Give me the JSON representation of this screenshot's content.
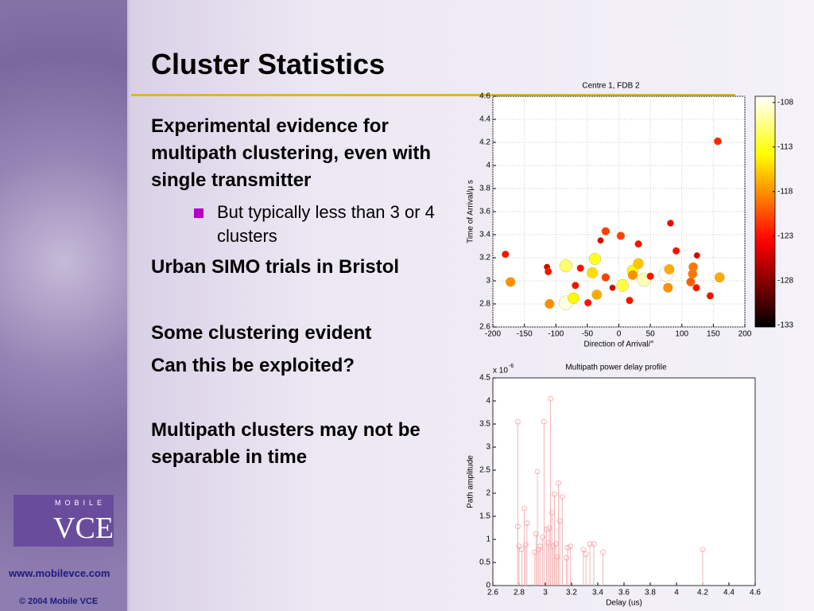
{
  "slide": {
    "title": "Cluster Statistics",
    "points": [
      "Experimental evidence for multipath clustering, even with single transmitter",
      "Urban SIMO trials in Bristol",
      "Some clustering evident",
      "Can this be exploited?",
      "Multipath clusters may not be separable in time"
    ],
    "subpoint": "But typically less than 3 or 4 clusters",
    "logo_top": "MOBILE",
    "logo_main": "VCE",
    "url": "www.mobilevce.com",
    "copyright": "© 2004 Mobile VCE"
  },
  "chart_data": [
    {
      "type": "scatter",
      "title": "Centre 1, FDB 2",
      "xlabel": "Direction of Arrival/°",
      "ylabel": "Time of Arrival/μ s",
      "colormap": "hot",
      "grid": true,
      "x": [
        -180,
        -172,
        -114,
        -112,
        -110,
        -84,
        -84,
        -72,
        -69,
        -61,
        -49,
        -38,
        -42,
        -35,
        -29,
        -21,
        -21,
        -10,
        3,
        6,
        17,
        22,
        22,
        31,
        31,
        40,
        50,
        75,
        80,
        78,
        82,
        91,
        118,
        117,
        114,
        123,
        124,
        145,
        160,
        157
      ],
      "values": [
        3.23,
        2.99,
        3.12,
        3.08,
        2.8,
        3.13,
        2.81,
        2.85,
        2.96,
        3.11,
        2.81,
        3.19,
        3.07,
        2.88,
        3.35,
        3.43,
        3.03,
        2.94,
        3.39,
        2.96,
        2.83,
        3.09,
        3.05,
        3.15,
        3.32,
        3.01,
        3.04,
        3.06,
        3.1,
        2.94,
        3.5,
        3.26,
        3.12,
        3.06,
        2.99,
        2.94,
        3.22,
        2.87,
        3.03,
        4.21
      ],
      "power": [
        -123,
        -118,
        -125,
        -123,
        -118,
        -111,
        -108,
        -114,
        -123,
        -123,
        -123,
        -113,
        -115,
        -117,
        -125,
        -121,
        -121,
        -125,
        -121,
        -112,
        -123,
        -114,
        -118,
        -116,
        -123,
        -109,
        -123,
        -107,
        -117,
        -118,
        -124,
        -123,
        -119,
        -119,
        -120,
        -123,
        -125,
        -123,
        -117,
        -122
      ],
      "xlim": [
        -200,
        200
      ],
      "xticks": [
        -200,
        -150,
        -100,
        -50,
        0,
        50,
        100,
        150,
        200
      ],
      "ylim": [
        2.6,
        4.6
      ],
      "yticks": [
        2.6,
        2.8,
        3,
        3.2,
        3.4,
        3.6,
        3.8,
        4,
        4.2,
        4.4,
        4.6
      ],
      "clim": [
        -133.2,
        -107.3
      ],
      "cticks": [
        -108,
        -113,
        -118,
        -123,
        -128,
        -133
      ]
    },
    {
      "type": "stem",
      "title": "Multipath power delay profile",
      "xlabel": "Delay (us)",
      "ylabel": "Path amplitude",
      "y_multiplier": "x 10",
      "y_multiplier_exp": "-6",
      "color": "#f2a4a8",
      "grid": false,
      "x": [
        2.79,
        2.79,
        2.8,
        2.82,
        2.84,
        2.85,
        2.86,
        2.92,
        2.93,
        2.94,
        2.95,
        2.96,
        2.98,
        2.99,
        3.01,
        3.02,
        3.03,
        3.04,
        3.05,
        3.06,
        3.07,
        3.08,
        3.09,
        3.1,
        3.11,
        3.13,
        3.16,
        3.17,
        3.19,
        3.29,
        3.31,
        3.34,
        3.37,
        3.44,
        4.2
      ],
      "values": [
        3.55,
        1.28,
        0.85,
        0.78,
        1.67,
        0.88,
        1.35,
        0.72,
        1.12,
        2.47,
        0.78,
        0.85,
        1.05,
        3.55,
        1.22,
        0.92,
        1.25,
        4.05,
        1.58,
        0.85,
        1.98,
        0.9,
        0.62,
        2.22,
        1.4,
        1.92,
        0.6,
        0.82,
        0.85,
        0.78,
        0.68,
        0.9,
        0.9,
        0.72,
        0.78
      ],
      "xlim": [
        2.6,
        4.6
      ],
      "xticks": [
        2.6,
        2.8,
        3,
        3.2,
        3.4,
        3.6,
        3.8,
        4,
        4.2,
        4.4,
        4.6
      ],
      "ylim": [
        0,
        4.5
      ],
      "yticks": [
        0,
        0.5,
        1,
        1.5,
        2,
        2.5,
        3,
        3.5,
        4,
        4.5
      ]
    }
  ]
}
